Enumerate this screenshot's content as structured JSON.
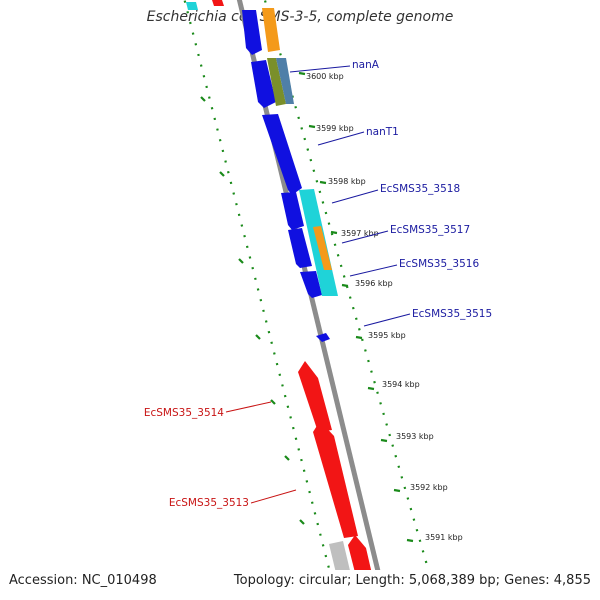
{
  "title": "Escherichia coli SMS-3-5, complete genome",
  "footer": {
    "accession_label": "Accession: NC_010498",
    "summary": "Topology: circular; Length: 5,068,389 bp; Genes: 4,855"
  },
  "colors": {
    "backbone": "#8c8c8c",
    "forward_cds": "#1010e0",
    "reverse_cds": "#f21515",
    "highlight_cyan": "#1fd3d8",
    "highlight_orange": "#f49a1a",
    "highlight_green": "#7a8f2a",
    "highlight_steel": "#4f7fa8",
    "gray_feature": "#bfbfbf",
    "gc_dots": "#1a8a1a",
    "forward_label": "#1a1aa0",
    "reverse_label": "#c81414"
  },
  "ticks": [
    {
      "label": "3600 kbp"
    },
    {
      "label": "3599 kbp"
    },
    {
      "label": "3598 kbp"
    },
    {
      "label": "3597 kbp"
    },
    {
      "label": "3596 kbp"
    },
    {
      "label": "3595 kbp"
    },
    {
      "label": "3594 kbp"
    },
    {
      "label": "3593 kbp"
    },
    {
      "label": "3592 kbp"
    },
    {
      "label": "3591 kbp"
    }
  ],
  "gene_labels": [
    {
      "name": "nanA",
      "strand": "forward"
    },
    {
      "name": "nanT1",
      "strand": "forward"
    },
    {
      "name": "EcSMS35_3518",
      "strand": "forward"
    },
    {
      "name": "EcSMS35_3517",
      "strand": "forward"
    },
    {
      "name": "EcSMS35_3516",
      "strand": "forward"
    },
    {
      "name": "EcSMS35_3515",
      "strand": "forward"
    },
    {
      "name": "EcSMS35_3514",
      "strand": "reverse"
    },
    {
      "name": "EcSMS35_3513",
      "strand": "reverse"
    }
  ]
}
